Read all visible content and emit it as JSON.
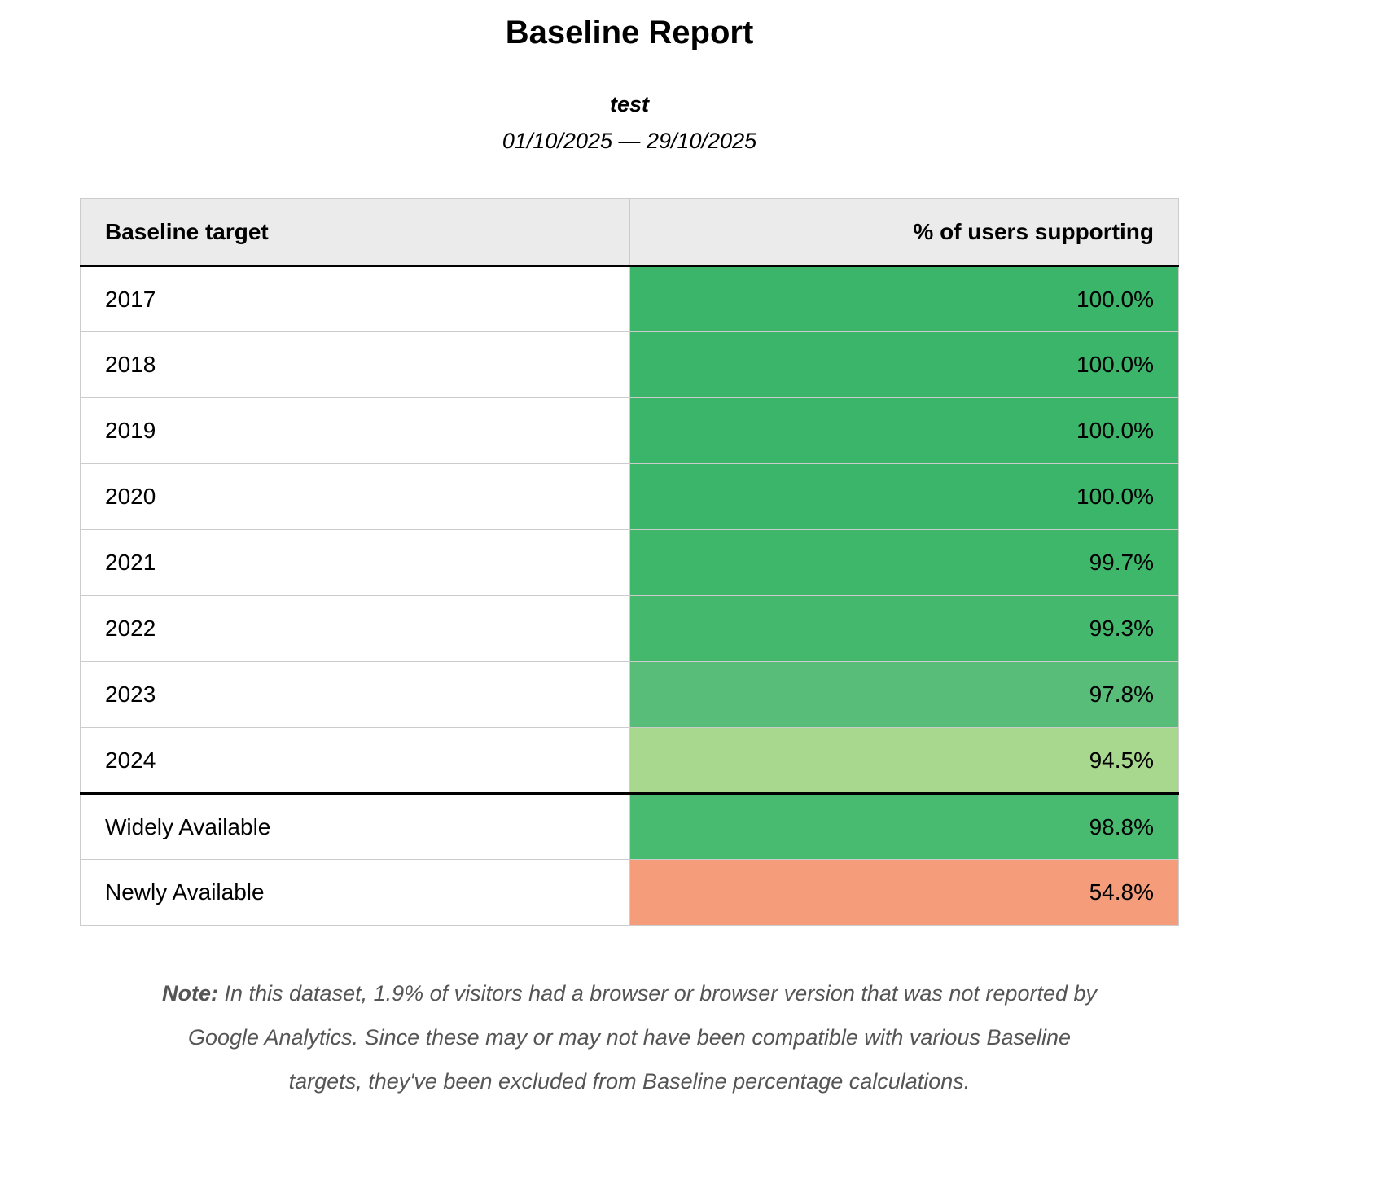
{
  "report": {
    "title": "Baseline Report",
    "subtitle": "test",
    "date_range": "01/10/2025 — 29/10/2025"
  },
  "table": {
    "columns": [
      "Baseline target",
      "% of users supporting"
    ],
    "rows": [
      {
        "target": "2017",
        "value": "100.0%",
        "color": "#3bb569",
        "group": "year"
      },
      {
        "target": "2018",
        "value": "100.0%",
        "color": "#3bb569",
        "group": "year"
      },
      {
        "target": "2019",
        "value": "100.0%",
        "color": "#3bb569",
        "group": "year"
      },
      {
        "target": "2020",
        "value": "100.0%",
        "color": "#3bb569",
        "group": "year"
      },
      {
        "target": "2021",
        "value": "99.7%",
        "color": "#3eb76b",
        "group": "year"
      },
      {
        "target": "2022",
        "value": "99.3%",
        "color": "#44b96d",
        "group": "year"
      },
      {
        "target": "2023",
        "value": "97.8%",
        "color": "#58bd78",
        "group": "year"
      },
      {
        "target": "2024",
        "value": "94.5%",
        "color": "#a8d78e",
        "group": "year"
      },
      {
        "target": "Widely Available",
        "value": "98.8%",
        "color": "#49bb71",
        "group": "availability"
      },
      {
        "target": "Newly Available",
        "value": "54.8%",
        "color": "#f59d7a",
        "group": "availability"
      }
    ]
  },
  "note": {
    "label": "Note:",
    "text": " In this dataset, 1.9% of visitors had a browser or browser version that was not reported by Google Analytics. Since these may or may not have been compatible with various Baseline targets, they've been excluded from Baseline percentage calculations."
  },
  "colors": {
    "high_support_green": "#3bb569",
    "medium_support_green": "#a8d78e",
    "low_support_salmon": "#f59d7a"
  }
}
